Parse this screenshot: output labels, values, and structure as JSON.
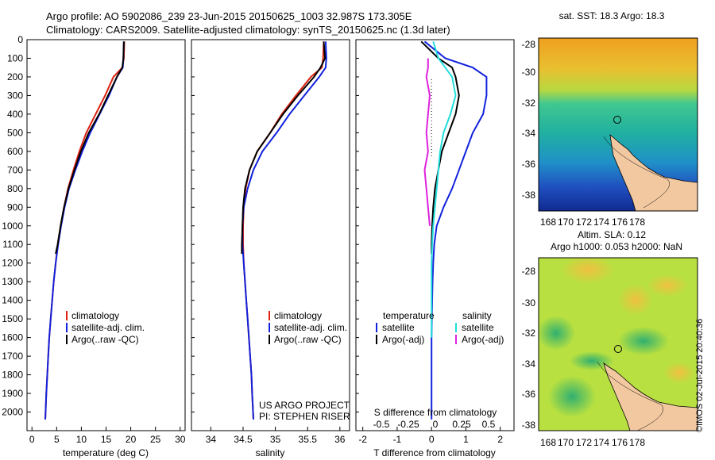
{
  "header": {
    "line1": "Argo profile: AO 5902086_239 23-Jun-2015 20150625_1003 32.987S 173.305E",
    "line2": "Climatology: CARS2009. Satellite-adjusted climatology: synTS_20150625.nc (1.3d later)"
  },
  "colors": {
    "climatology": "#dd2211",
    "satellite": "#1122dd",
    "argo": "#000000",
    "cyan": "#22dddd",
    "magenta": "#dd22dd",
    "land": "#f2c8a0"
  },
  "legend_temp": {
    "climatology": "climatology",
    "satellite": "satellite-adj. clim.",
    "argo": "Argo(..raw -QC)"
  },
  "legend_sal": {
    "climatology": "climatology",
    "satellite": "satellite-adj. clim.",
    "argo": "Argo(..raw -QC)"
  },
  "legend_diff": {
    "temperature": "temperature",
    "salinity": "salinity",
    "t_satellite": "satellite",
    "s_satellite": "satellite",
    "t_argo": "Argo(-adj)",
    "s_argo": "Argo(-adj)"
  },
  "project": {
    "line1": "US ARGO PROJECT",
    "line2": "PI: STEPHEN RISER"
  },
  "diff_top_label": "S difference from climatology",
  "s_ticks": [
    "-0.5",
    "-0.25",
    "0",
    "0.25",
    "0.5"
  ],
  "maps": {
    "sst_title": "sat. SST: 18.3 Argo: 18.3",
    "sla_title1": "Altim. SLA: 0.12",
    "sla_title2": "Argo h1000: 0.053 h2000: NaN",
    "lon_ticks": [
      "168",
      "170",
      "172",
      "174",
      "176",
      "178"
    ],
    "lat_ticks": [
      "-28",
      "-30",
      "-32",
      "-34",
      "-36",
      "-38"
    ]
  },
  "stamp": "©IMOS 02-Jul-2015 20:40:36",
  "chart_data": [
    {
      "type": "line",
      "xlabel": "temperature (deg C)",
      "ylabel": "",
      "xlim": [
        -1,
        31
      ],
      "ylim": [
        2100,
        0
      ],
      "xticks": [
        0,
        5,
        10,
        15,
        20,
        25,
        30
      ],
      "yticks": [
        0,
        100,
        200,
        300,
        400,
        500,
        600,
        700,
        800,
        900,
        1000,
        1100,
        1200,
        1300,
        1400,
        1500,
        1600,
        1700,
        1800,
        1900,
        2000
      ],
      "series": [
        {
          "name": "climatology",
          "color": "#dd2211",
          "x": [
            18.7,
            18.6,
            18.3,
            16.5,
            14.8,
            12.9,
            11.0,
            9.6,
            8.4,
            7.3,
            6.5,
            5.8,
            5.2,
            4.8,
            4.4,
            4.1,
            3.8,
            3.5,
            3.3,
            3.1,
            2.9,
            2.7
          ],
          "y": [
            10,
            100,
            150,
            200,
            300,
            400,
            500,
            600,
            700,
            800,
            900,
            1000,
            1100,
            1200,
            1300,
            1400,
            1500,
            1600,
            1700,
            1800,
            1900,
            2040
          ]
        },
        {
          "name": "satellite-adj. clim.",
          "color": "#1122dd",
          "x": [
            18.6,
            18.5,
            18.4,
            17.2,
            15.6,
            13.7,
            11.8,
            10.2,
            8.8,
            7.5,
            6.6,
            5.9,
            5.3,
            4.8,
            4.4,
            4.1,
            3.8,
            3.5,
            3.3,
            3.1,
            2.9,
            2.7
          ],
          "y": [
            10,
            100,
            150,
            200,
            300,
            400,
            500,
            600,
            700,
            800,
            900,
            1000,
            1100,
            1200,
            1300,
            1400,
            1500,
            1600,
            1700,
            1800,
            1900,
            2040
          ]
        },
        {
          "name": "Argo(..raw -QC)",
          "color": "#000000",
          "x": [
            18.6,
            18.5,
            18.3,
            17.2,
            15.4,
            13.6,
            11.5,
            9.9,
            8.6,
            7.4,
            6.5,
            5.8,
            5.2,
            4.8
          ],
          "y": [
            10,
            100,
            150,
            200,
            300,
            400,
            500,
            600,
            700,
            800,
            900,
            1000,
            1100,
            1150
          ]
        }
      ]
    },
    {
      "type": "line",
      "xlabel": "salinity",
      "ylabel": "",
      "xlim": [
        33.7,
        36.15
      ],
      "ylim": [
        2100,
        0
      ],
      "xticks": [
        34,
        34.5,
        35,
        35.5,
        36
      ],
      "series": [
        {
          "name": "climatology",
          "color": "#dd2211",
          "x": [
            35.75,
            35.74,
            35.72,
            35.55,
            35.32,
            35.1,
            34.92,
            34.72,
            34.6,
            34.54,
            34.51,
            34.5,
            34.5,
            34.51,
            34.53,
            34.55,
            34.57,
            34.59,
            34.61,
            34.63,
            34.64,
            34.66
          ],
          "y": [
            10,
            100,
            150,
            200,
            300,
            400,
            500,
            600,
            700,
            800,
            900,
            1000,
            1100,
            1200,
            1300,
            1400,
            1500,
            1600,
            1700,
            1800,
            1900,
            2040
          ]
        },
        {
          "name": "satellite-adj. clim.",
          "color": "#1122dd",
          "x": [
            35.78,
            35.79,
            35.78,
            35.68,
            35.45,
            35.22,
            35.02,
            34.8,
            34.66,
            34.57,
            34.51,
            34.49,
            34.49,
            34.51,
            34.53,
            34.55,
            34.57,
            34.59,
            34.61,
            34.63,
            34.64,
            34.66
          ],
          "y": [
            10,
            100,
            150,
            200,
            300,
            400,
            500,
            600,
            700,
            800,
            900,
            1000,
            1100,
            1200,
            1300,
            1400,
            1500,
            1600,
            1700,
            1800,
            1900,
            2040
          ]
        },
        {
          "name": "Argo(..raw -QC)",
          "color": "#000000",
          "x": [
            35.75,
            35.77,
            35.7,
            35.6,
            35.35,
            35.12,
            34.92,
            34.72,
            34.6,
            34.53,
            34.5,
            34.49,
            34.48,
            34.48
          ],
          "y": [
            10,
            100,
            150,
            200,
            300,
            400,
            500,
            600,
            700,
            800,
            900,
            1000,
            1100,
            1150
          ]
        }
      ]
    },
    {
      "type": "line",
      "xlabel": "T difference from climatology",
      "ylabel": "",
      "xlim": [
        -2.2,
        2.4
      ],
      "ylim": [
        2100,
        0
      ],
      "xticks": [
        -2,
        -1,
        0,
        1,
        2
      ],
      "series": [
        {
          "name": "T satellite",
          "color": "#1122dd",
          "x": [
            -0.2,
            0.4,
            1.2,
            1.6,
            1.6,
            1.5,
            1.2,
            1.0,
            0.8,
            0.6,
            0.35,
            0.15,
            0.08,
            0.05,
            0.03,
            0.02,
            0.01,
            0.0,
            0.0,
            0.0,
            0.0,
            0.0
          ],
          "y": [
            10,
            100,
            150,
            200,
            300,
            400,
            500,
            600,
            700,
            800,
            900,
            1000,
            1100,
            1200,
            1300,
            1400,
            1500,
            1600,
            1700,
            1800,
            1900,
            2040
          ]
        },
        {
          "name": "T Argo(-adj)",
          "color": "#000000",
          "x": [
            -0.3,
            0.2,
            0.6,
            0.7,
            0.8,
            0.7,
            0.5,
            0.3,
            0.2,
            0.1,
            0.05,
            0.02,
            0.0,
            0.0
          ],
          "y": [
            10,
            100,
            150,
            200,
            300,
            400,
            500,
            600,
            700,
            800,
            900,
            1000,
            1100,
            1150
          ]
        },
        {
          "name": "S satellite",
          "color": "#22dddd",
          "x": [
            0.05,
            0.2,
            0.4,
            0.6,
            0.7,
            0.55,
            0.35,
            0.25,
            0.2,
            0.15,
            0.1,
            0.05,
            0.02,
            0.0,
            0.0,
            0.0,
            0.0,
            0.0
          ],
          "y": [
            10,
            100,
            150,
            200,
            300,
            400,
            500,
            600,
            700,
            800,
            900,
            1000,
            1100,
            1200,
            1300,
            1400,
            1500,
            1600
          ]
        },
        {
          "name": "S Argo(-adj)",
          "color": "#dd22dd",
          "x": [
            -0.1,
            -0.1,
            -0.15,
            -0.05,
            -0.1,
            -0.15,
            -0.1,
            -0.2,
            -0.15,
            -0.1,
            -0.05
          ],
          "y": [
            100,
            150,
            200,
            300,
            400,
            500,
            600,
            700,
            800,
            900,
            1000
          ]
        }
      ]
    }
  ]
}
